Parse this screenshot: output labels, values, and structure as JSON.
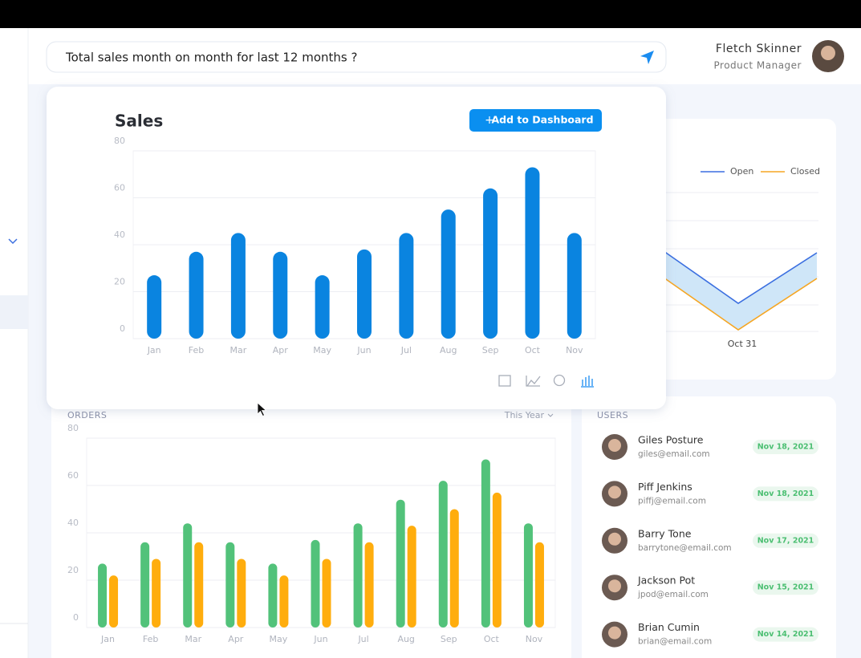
{
  "header": {
    "query": "Total sales month on month for last 12 months ?",
    "user_name": "Fletch Skinner",
    "user_role": "Product Manager"
  },
  "add_button": "Add to Dashboard",
  "chart_data": [
    {
      "type": "bar",
      "title": "Sales",
      "categories": [
        "Jan",
        "Feb",
        "Mar",
        "Apr",
        "May",
        "Jun",
        "Jul",
        "Aug",
        "Sep",
        "Oct",
        "Nov"
      ],
      "values": [
        27,
        37,
        45,
        37,
        27,
        38,
        45,
        55,
        64,
        73,
        45
      ],
      "color": "#0a84e0",
      "ylim": [
        0,
        80
      ],
      "yticks": [
        0,
        20,
        40,
        60,
        80
      ],
      "grid": true
    },
    {
      "type": "bar",
      "title": "ORDERS",
      "filter": "This Year",
      "categories": [
        "Jan",
        "Feb",
        "Mar",
        "Apr",
        "May",
        "Jun",
        "Jul",
        "Aug",
        "Sep",
        "Oct",
        "Nov"
      ],
      "series": [
        {
          "color": "#52c27a",
          "values": [
            27,
            36,
            44,
            36,
            27,
            37,
            44,
            54,
            62,
            71,
            44
          ]
        },
        {
          "color": "#ffad0d",
          "values": [
            22,
            29,
            36,
            29,
            22,
            29,
            36,
            43,
            50,
            57,
            36
          ]
        }
      ],
      "ylim": [
        0,
        80
      ],
      "yticks": [
        0,
        20,
        40,
        60,
        80
      ],
      "grid": true
    },
    {
      "type": "line",
      "categories": [
        null,
        "Oct 31",
        null
      ],
      "series": [
        {
          "name": "Open",
          "color": "#3b6fe0",
          "values": [
            91,
            35,
            98
          ]
        },
        {
          "name": "Closed",
          "color": "#f5a623",
          "values": [
            58,
            2,
            66
          ]
        }
      ]
    }
  ],
  "users": {
    "title": "USERS",
    "rows": [
      {
        "name": "Giles Posture",
        "email": "giles@email.com",
        "date": "Nov 18, 2021"
      },
      {
        "name": "Piff Jenkins",
        "email": "piffj@email.com",
        "date": "Nov 18, 2021"
      },
      {
        "name": "Barry Tone",
        "email": "barrytone@email.com",
        "date": "Nov 17, 2021"
      },
      {
        "name": "Jackson Pot",
        "email": "jpod@email.com",
        "date": "Nov 15, 2021"
      },
      {
        "name": "Brian Cumin",
        "email": "brian@email.com",
        "date": "Nov 14, 2021"
      }
    ]
  }
}
